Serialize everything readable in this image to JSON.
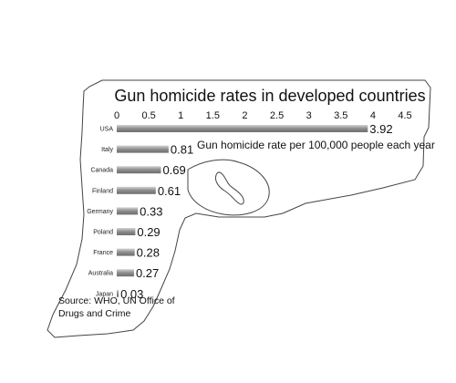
{
  "chart_data": {
    "type": "bar",
    "orientation": "horizontal",
    "title": "Gun homicide rates in developed countries",
    "annotation": "Gun homicide rate per 100,000 people each year",
    "source_line1": "Source: WHO, UN Office of",
    "source_line2": "Drugs and Crime",
    "categories": [
      "USA",
      "Italy",
      "Canada",
      "Finland",
      "Germany",
      "Poland",
      "France",
      "Australia",
      "Japan"
    ],
    "values": [
      3.92,
      0.81,
      0.69,
      0.61,
      0.33,
      0.29,
      0.28,
      0.27,
      0.03
    ],
    "value_labels": [
      "3.92",
      "0.81",
      "0.69",
      "0.61",
      "0.33",
      "0.29",
      "0.28",
      "0.27",
      "0.03"
    ],
    "xlim": [
      0,
      4.5
    ],
    "xticks": [
      0,
      0.5,
      1,
      1.5,
      2,
      2.5,
      3,
      3.5,
      4,
      4.5
    ],
    "xtick_labels": [
      "0",
      "0.5",
      "1",
      "1.5",
      "2",
      "2.5",
      "3",
      "3.5",
      "4",
      "4.5"
    ],
    "xaxis_position": "top",
    "grid": false,
    "legend": "none",
    "background_shape": "handgun-outline",
    "colors": {
      "bar": "#8c8c8c",
      "bar_highlight": "#d4d4d4",
      "outline": "#444444",
      "text": "#111111"
    }
  }
}
